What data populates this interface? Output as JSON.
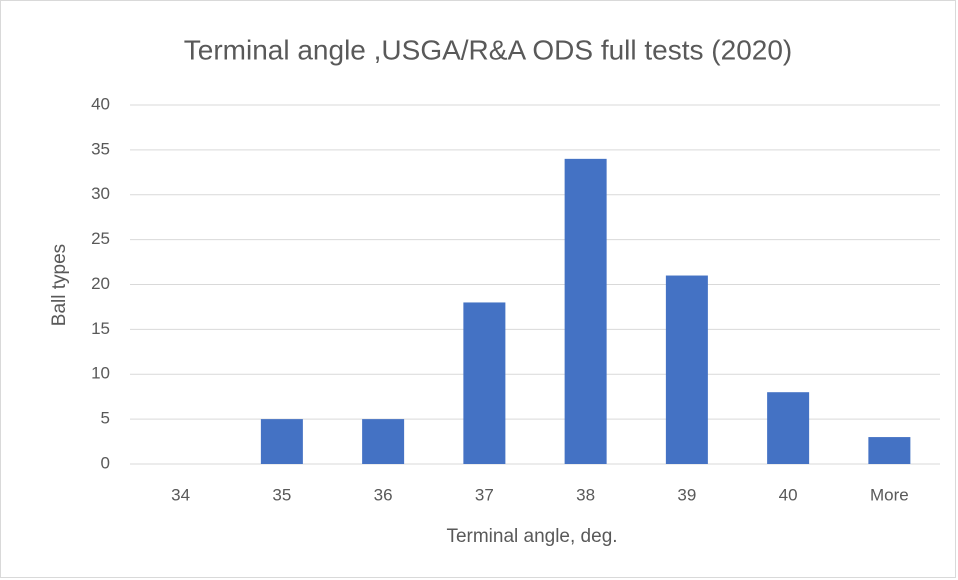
{
  "chart_data": {
    "type": "bar",
    "title": "Terminal angle ,USGA/R&A ODS full tests (2020)",
    "x_label": "Terminal angle, deg.",
    "y_label": "Ball types",
    "categories": [
      "34",
      "35",
      "36",
      "37",
      "38",
      "39",
      "40",
      "More"
    ],
    "values": [
      0,
      5,
      5,
      18,
      34,
      21,
      8,
      3
    ],
    "color": "#4472c4",
    "ylim": [
      0,
      40
    ],
    "yticks": [
      0,
      5,
      10,
      15,
      20,
      25,
      30,
      35,
      40
    ],
    "grid": true
  }
}
